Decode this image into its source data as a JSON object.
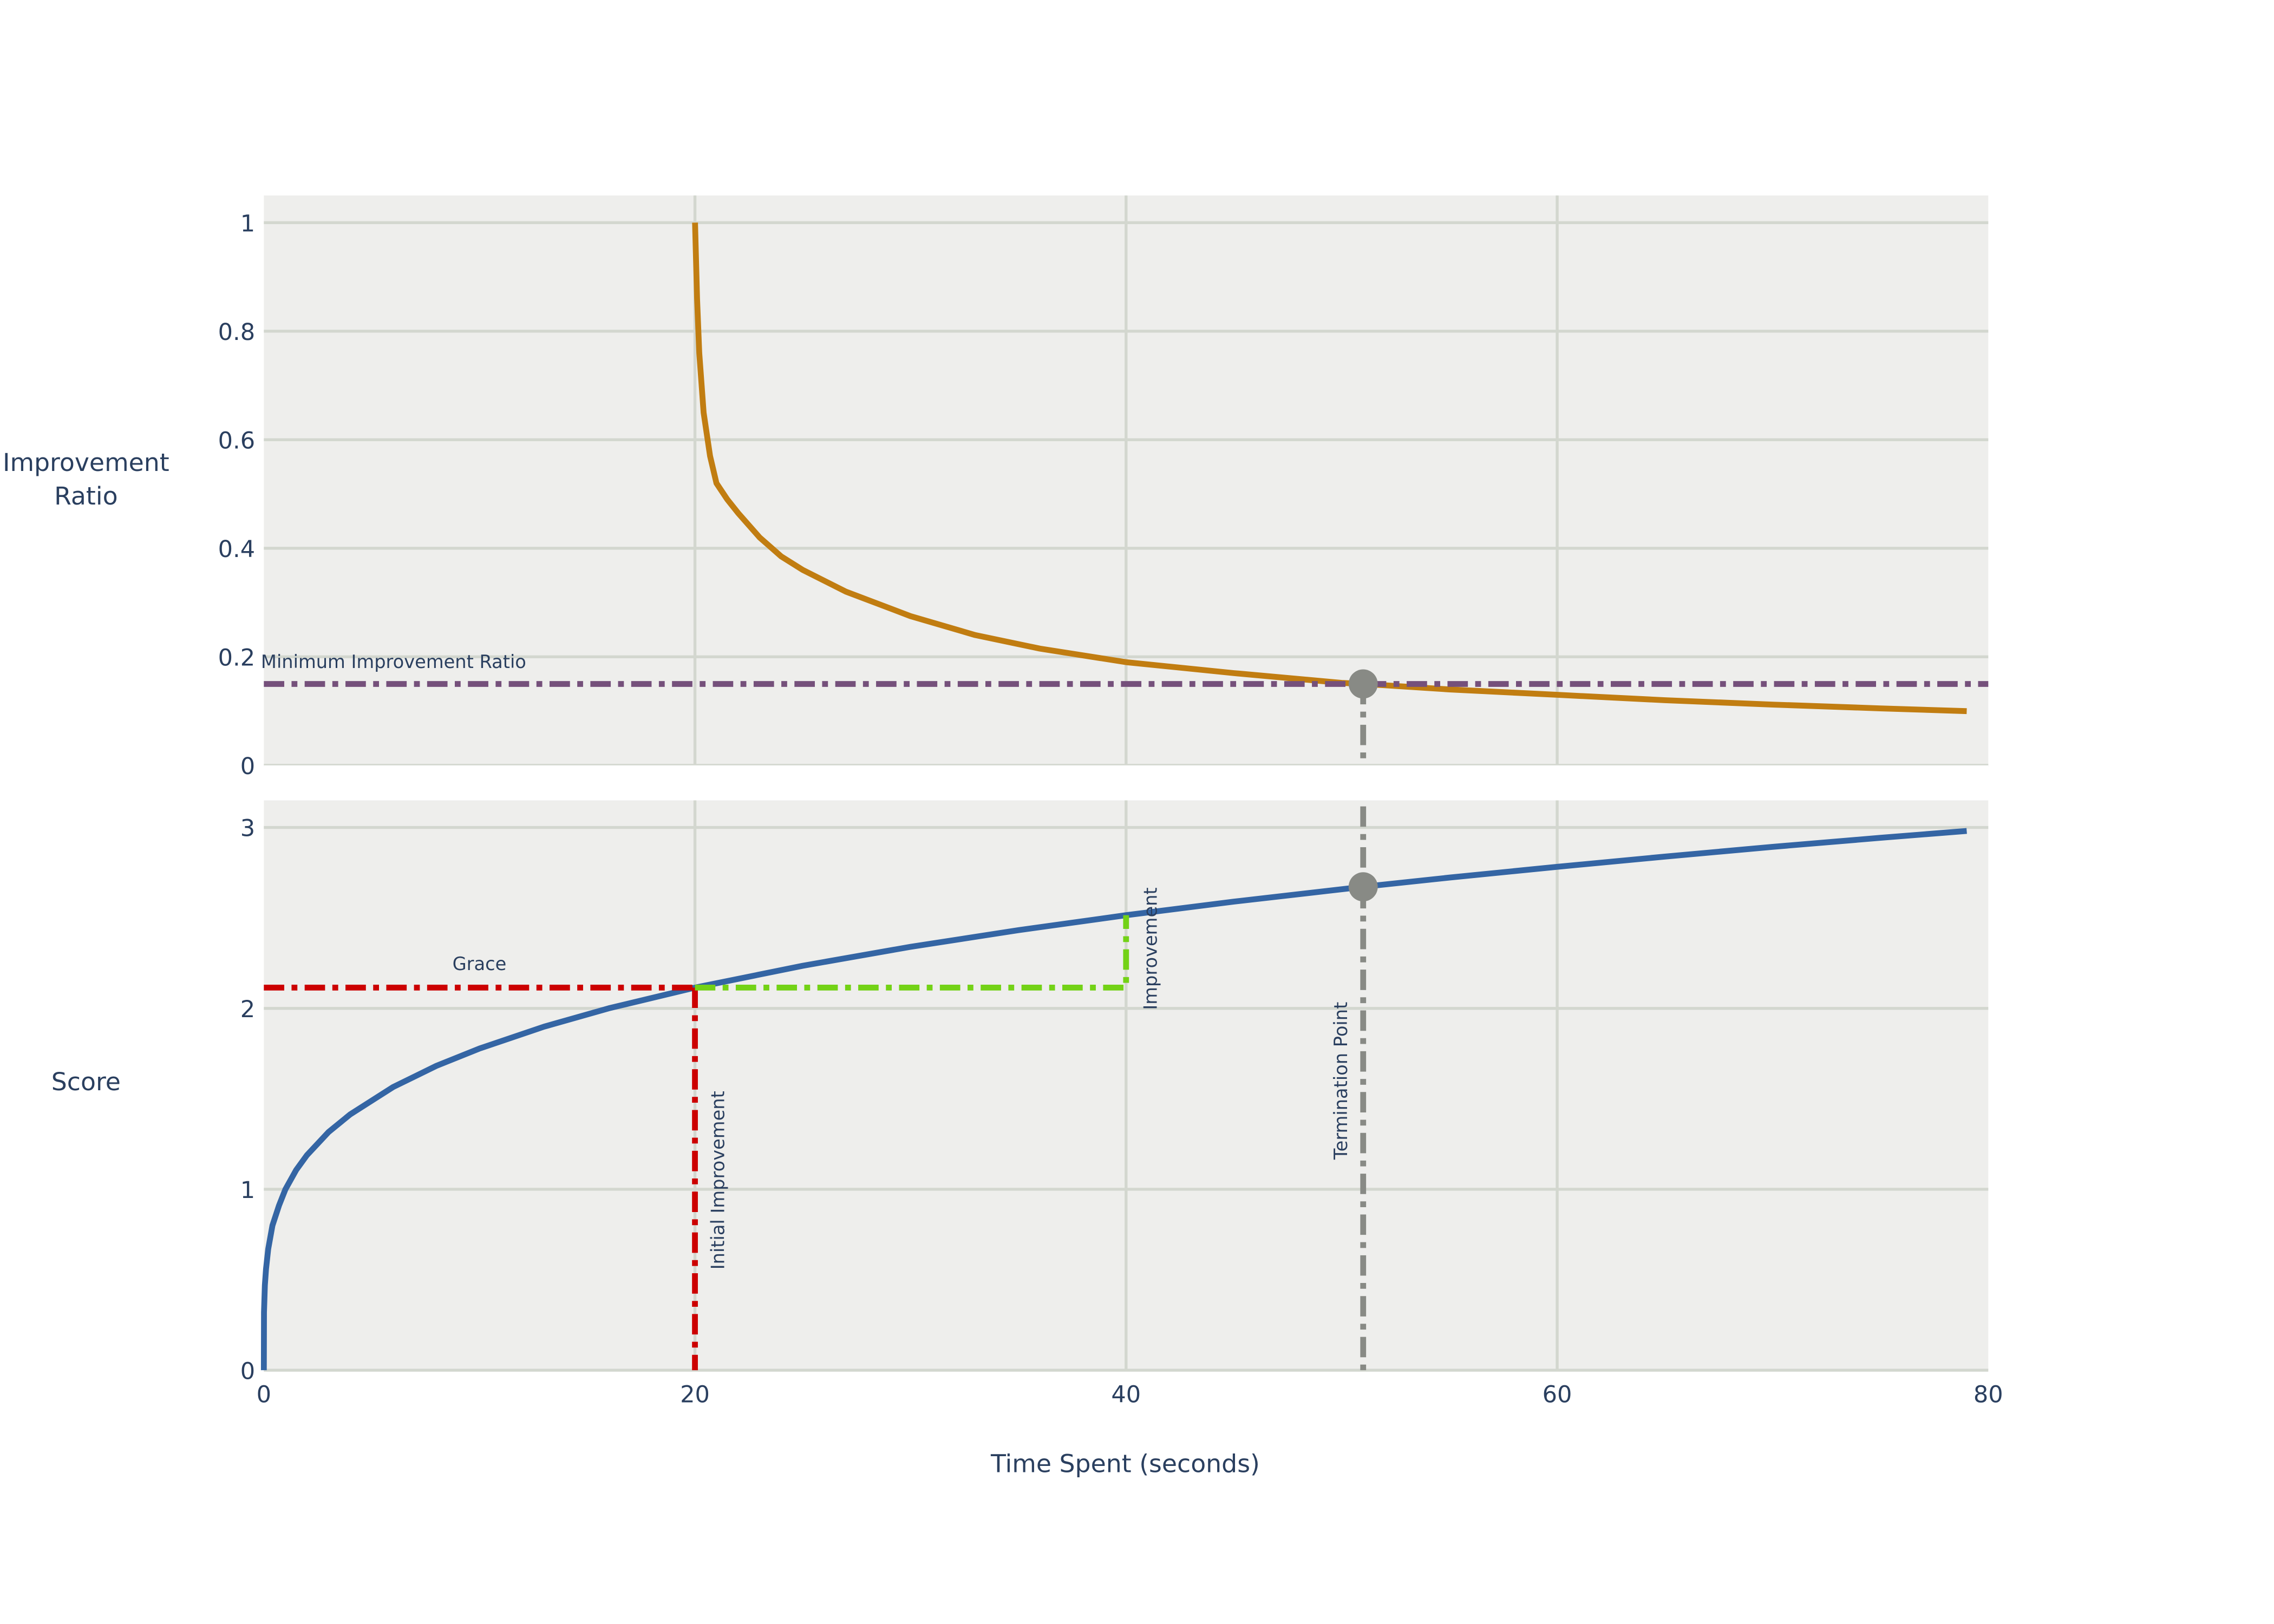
{
  "chart_data": [
    {
      "type": "line",
      "ylabel": [
        "Improvement",
        "Ratio"
      ],
      "xlim": [
        0,
        80
      ],
      "ylim": [
        0,
        1.05
      ],
      "yticks": [
        "0",
        "0.2",
        "0.4",
        "0.6",
        "0.8",
        "1"
      ],
      "ytick_values": [
        0,
        0.2,
        0.4,
        0.6,
        0.8,
        1
      ],
      "grid": true,
      "series": [
        {
          "color": "#c17d11",
          "x": [
            20,
            20.1,
            20.2,
            20.4,
            20.7,
            21,
            21.5,
            22,
            23,
            24,
            25,
            27,
            30,
            33,
            36,
            40,
            45,
            50,
            51,
            55,
            60,
            65,
            70,
            75,
            79
          ],
          "y": [
            1.0,
            0.86,
            0.76,
            0.65,
            0.57,
            0.52,
            0.49,
            0.465,
            0.42,
            0.385,
            0.36,
            0.32,
            0.275,
            0.24,
            0.215,
            0.19,
            0.17,
            0.152,
            0.15,
            0.14,
            0.13,
            0.12,
            0.112,
            0.105,
            0.1
          ]
        }
      ],
      "annotations": {
        "min_ratio": {
          "label": "Minimum Improvement Ratio",
          "y": 0.15,
          "color": "#75507b"
        },
        "marker": {
          "x": 51,
          "y": 0.15,
          "color": "#888a85"
        }
      }
    },
    {
      "type": "line",
      "ylabel": [
        "Score"
      ],
      "xlabel": "Time Spent (seconds)",
      "xlim": [
        0,
        80
      ],
      "ylim": [
        0,
        3.15
      ],
      "xticks": [
        "0",
        "20",
        "40",
        "60",
        "80"
      ],
      "xtick_values": [
        0,
        20,
        40,
        60,
        80
      ],
      "yticks": [
        "0",
        "1",
        "2",
        "3"
      ],
      "ytick_values": [
        0,
        1,
        2,
        3
      ],
      "grid": true,
      "series": [
        {
          "color": "#3465a4",
          "x": [
            0,
            0.01,
            0.05,
            0.1,
            0.2,
            0.4,
            0.7,
            1,
            1.5,
            2,
            3,
            4,
            6,
            8,
            10,
            13,
            16,
            20,
            25,
            30,
            35,
            40,
            45,
            51,
            55,
            60,
            65,
            70,
            75,
            79
          ],
          "y": [
            0,
            0.32,
            0.47,
            0.56,
            0.67,
            0.8,
            0.91,
            1.0,
            1.107,
            1.189,
            1.316,
            1.414,
            1.565,
            1.682,
            1.778,
            1.899,
            2.0,
            2.115,
            2.236,
            2.34,
            2.432,
            2.515,
            2.59,
            2.672,
            2.723,
            2.783,
            2.839,
            2.893,
            2.943,
            2.981
          ]
        }
      ],
      "annotations": {
        "grace": {
          "label": "Grace",
          "x0": 0,
          "x1": 20,
          "y": 2.115,
          "color": "#cc0000"
        },
        "initial_improvement": {
          "label": "Initial Improvement",
          "x": 20,
          "y0": 0,
          "y1": 2.115,
          "color": "#cc0000"
        },
        "improvement": {
          "label": "Improvement",
          "x0": 20,
          "x1": 40,
          "y0": 2.115,
          "y1": 2.515,
          "color": "#73d216"
        },
        "termination": {
          "label": "Termination Point",
          "x": 51,
          "color": "#888a85"
        },
        "marker": {
          "x": 51,
          "y": 2.672,
          "color": "#888a85"
        }
      }
    }
  ]
}
